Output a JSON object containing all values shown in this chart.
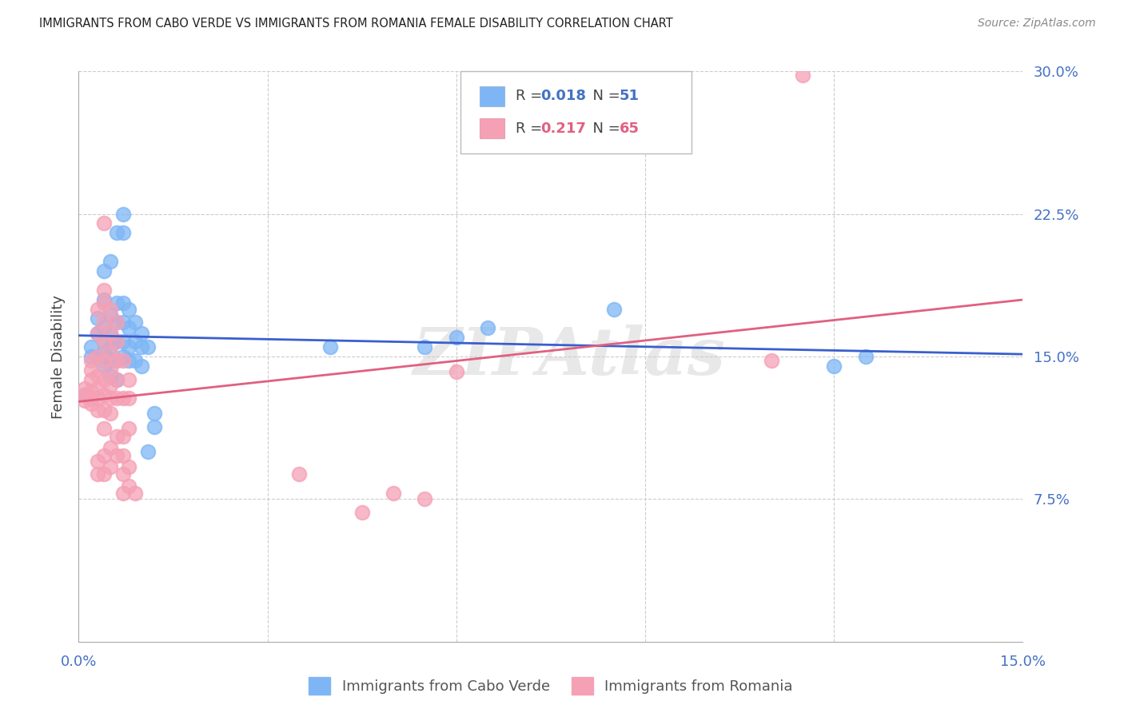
{
  "title": "IMMIGRANTS FROM CABO VERDE VS IMMIGRANTS FROM ROMANIA FEMALE DISABILITY CORRELATION CHART",
  "source": "Source: ZipAtlas.com",
  "ylabel": "Female Disability",
  "x_min": 0.0,
  "x_max": 0.15,
  "y_min": 0.0,
  "y_max": 0.3,
  "grid_color": "#cccccc",
  "background_color": "#ffffff",
  "watermark": "ZIPAtlas",
  "cabo_verde_color": "#7EB6F5",
  "romania_color": "#F5A0B5",
  "cabo_verde_line_color": "#3A5FCD",
  "romania_line_color": "#E06080",
  "cabo_verde_R": 0.018,
  "cabo_verde_N": 51,
  "romania_R": 0.217,
  "romania_N": 65,
  "cabo_verde_points": [
    [
      0.001,
      0.13
    ],
    [
      0.002,
      0.15
    ],
    [
      0.002,
      0.155
    ],
    [
      0.003,
      0.15
    ],
    [
      0.003,
      0.162
    ],
    [
      0.003,
      0.17
    ],
    [
      0.004,
      0.145
    ],
    [
      0.004,
      0.152
    ],
    [
      0.004,
      0.158
    ],
    [
      0.004,
      0.165
    ],
    [
      0.004,
      0.18
    ],
    [
      0.004,
      0.195
    ],
    [
      0.005,
      0.14
    ],
    [
      0.005,
      0.148
    ],
    [
      0.005,
      0.155
    ],
    [
      0.005,
      0.162
    ],
    [
      0.005,
      0.172
    ],
    [
      0.005,
      0.2
    ],
    [
      0.006,
      0.138
    ],
    [
      0.006,
      0.148
    ],
    [
      0.006,
      0.158
    ],
    [
      0.006,
      0.168
    ],
    [
      0.006,
      0.178
    ],
    [
      0.006,
      0.215
    ],
    [
      0.007,
      0.15
    ],
    [
      0.007,
      0.158
    ],
    [
      0.007,
      0.168
    ],
    [
      0.007,
      0.178
    ],
    [
      0.007,
      0.215
    ],
    [
      0.007,
      0.225
    ],
    [
      0.008,
      0.148
    ],
    [
      0.008,
      0.155
    ],
    [
      0.008,
      0.165
    ],
    [
      0.008,
      0.175
    ],
    [
      0.009,
      0.148
    ],
    [
      0.009,
      0.158
    ],
    [
      0.009,
      0.168
    ],
    [
      0.01,
      0.145
    ],
    [
      0.01,
      0.155
    ],
    [
      0.01,
      0.162
    ],
    [
      0.011,
      0.1
    ],
    [
      0.011,
      0.155
    ],
    [
      0.012,
      0.12
    ],
    [
      0.012,
      0.113
    ],
    [
      0.04,
      0.155
    ],
    [
      0.055,
      0.155
    ],
    [
      0.06,
      0.16
    ],
    [
      0.065,
      0.165
    ],
    [
      0.085,
      0.175
    ],
    [
      0.12,
      0.145
    ],
    [
      0.125,
      0.15
    ]
  ],
  "romania_points": [
    [
      0.001,
      0.127
    ],
    [
      0.001,
      0.13
    ],
    [
      0.001,
      0.133
    ],
    [
      0.002,
      0.125
    ],
    [
      0.002,
      0.128
    ],
    [
      0.002,
      0.132
    ],
    [
      0.002,
      0.138
    ],
    [
      0.002,
      0.143
    ],
    [
      0.002,
      0.148
    ],
    [
      0.003,
      0.088
    ],
    [
      0.003,
      0.095
    ],
    [
      0.003,
      0.122
    ],
    [
      0.003,
      0.128
    ],
    [
      0.003,
      0.133
    ],
    [
      0.003,
      0.14
    ],
    [
      0.003,
      0.15
    ],
    [
      0.003,
      0.162
    ],
    [
      0.003,
      0.175
    ],
    [
      0.004,
      0.088
    ],
    [
      0.004,
      0.098
    ],
    [
      0.004,
      0.112
    ],
    [
      0.004,
      0.122
    ],
    [
      0.004,
      0.13
    ],
    [
      0.004,
      0.138
    ],
    [
      0.004,
      0.148
    ],
    [
      0.004,
      0.158
    ],
    [
      0.004,
      0.168
    ],
    [
      0.004,
      0.178
    ],
    [
      0.004,
      0.185
    ],
    [
      0.004,
      0.22
    ],
    [
      0.005,
      0.092
    ],
    [
      0.005,
      0.102
    ],
    [
      0.005,
      0.12
    ],
    [
      0.005,
      0.128
    ],
    [
      0.005,
      0.135
    ],
    [
      0.005,
      0.143
    ],
    [
      0.005,
      0.152
    ],
    [
      0.005,
      0.162
    ],
    [
      0.005,
      0.175
    ],
    [
      0.006,
      0.098
    ],
    [
      0.006,
      0.108
    ],
    [
      0.006,
      0.128
    ],
    [
      0.006,
      0.138
    ],
    [
      0.006,
      0.148
    ],
    [
      0.006,
      0.158
    ],
    [
      0.006,
      0.168
    ],
    [
      0.007,
      0.078
    ],
    [
      0.007,
      0.088
    ],
    [
      0.007,
      0.098
    ],
    [
      0.007,
      0.108
    ],
    [
      0.007,
      0.128
    ],
    [
      0.007,
      0.148
    ],
    [
      0.008,
      0.082
    ],
    [
      0.008,
      0.092
    ],
    [
      0.008,
      0.112
    ],
    [
      0.008,
      0.128
    ],
    [
      0.008,
      0.138
    ],
    [
      0.009,
      0.078
    ],
    [
      0.035,
      0.088
    ],
    [
      0.045,
      0.068
    ],
    [
      0.05,
      0.078
    ],
    [
      0.055,
      0.075
    ],
    [
      0.06,
      0.142
    ],
    [
      0.11,
      0.148
    ],
    [
      0.115,
      0.298
    ]
  ]
}
